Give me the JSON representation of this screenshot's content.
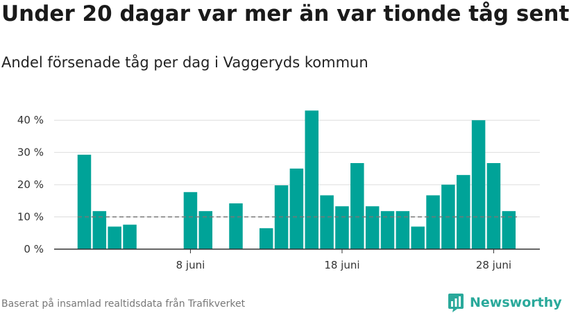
{
  "title": "Under 20 dagar var mer än var tionde tåg sent",
  "subtitle": "Andel försenade tåg per dag i Vaggeryds kommun",
  "source": "Baserat på insamlad realtidsdata från Trafikverket",
  "brand": {
    "name": "Newsworthy",
    "icon": "newsworthy-logo-icon"
  },
  "colors": {
    "bar": "#00a398",
    "reference": "#777777",
    "grid": "#dddddd",
    "axis": "#333333",
    "brand": "#2aa99b"
  },
  "chart_data": {
    "type": "bar",
    "x": [
      "2024-06-01",
      "2024-06-02",
      "2024-06-03",
      "2024-06-04",
      "2024-06-05",
      "2024-06-06",
      "2024-06-07",
      "2024-06-08",
      "2024-06-09",
      "2024-06-10",
      "2024-06-11",
      "2024-06-12",
      "2024-06-13",
      "2024-06-14",
      "2024-06-15",
      "2024-06-16",
      "2024-06-17",
      "2024-06-18",
      "2024-06-19",
      "2024-06-20",
      "2024-06-21",
      "2024-06-22",
      "2024-06-23",
      "2024-06-24",
      "2024-06-25",
      "2024-06-26",
      "2024-06-27",
      "2024-06-28",
      "2024-06-29"
    ],
    "values": [
      29.3,
      11.8,
      7,
      7.6,
      null,
      null,
      null,
      17.7,
      11.8,
      null,
      14.2,
      null,
      6.5,
      19.8,
      25,
      43,
      16.7,
      13.3,
      26.7,
      13.3,
      11.8,
      11.8,
      7,
      16.7,
      20,
      23,
      40,
      26.7,
      11.8
    ],
    "unit": "%",
    "reference_line": 10,
    "ylim": [
      0,
      45
    ],
    "yticks": [
      0,
      10,
      20,
      30,
      40
    ],
    "ytick_labels": [
      "0 %",
      "10 %",
      "20 %",
      "30 %",
      "40 %"
    ],
    "xticks": [
      "2024-06-08",
      "2024-06-18",
      "2024-06-28"
    ],
    "xtick_labels": [
      "8 juni",
      "18 juni",
      "28 juni"
    ],
    "grid": true,
    "legend": "none"
  }
}
